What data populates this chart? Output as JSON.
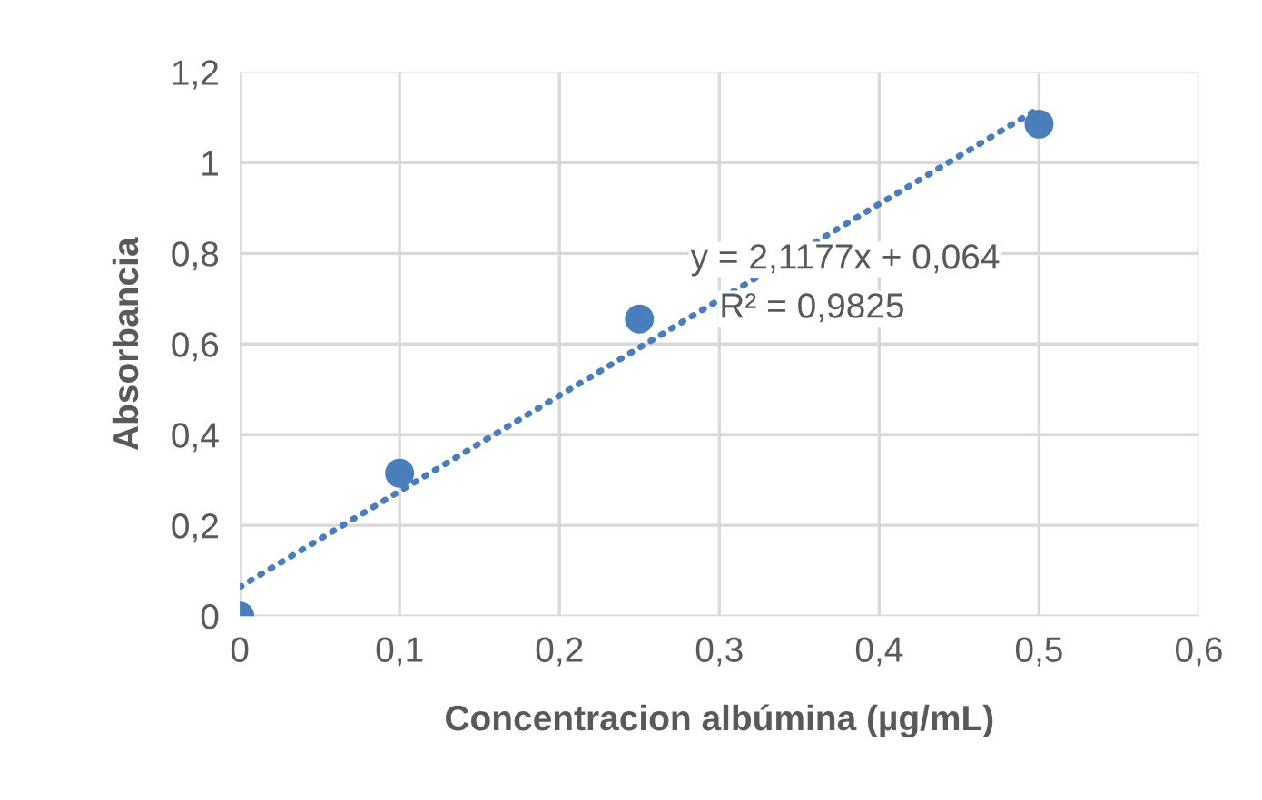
{
  "chart_data": {
    "type": "scatter",
    "xlabel": "Concentracion albúmina (µg/mL)",
    "ylabel": "Absorbancia",
    "series": [
      {
        "color": "#4a7ebb",
        "x": [
          0,
          0.1,
          0.25,
          0.5
        ],
        "values": [
          0,
          0.315,
          0.655,
          1.085
        ],
        "marker": "circle"
      },
      {
        "type": "line",
        "color": "#4a7ebb",
        "x": [
          0,
          0.5
        ],
        "values": [
          0.064,
          1.12
        ],
        "line_style": "dotted",
        "marker": "none"
      }
    ],
    "annotations": [
      "y = 2,1177x + 0,064",
      "R² = 0,9825"
    ],
    "xlim": [
      0,
      0.6
    ],
    "ylim": [
      0,
      1.2
    ],
    "xticks": [
      0,
      {
        "value": 0.1,
        "label": "0,1"
      },
      {
        "value": 0.2,
        "label": "0,2"
      },
      {
        "value": 0.3,
        "label": "0,3"
      },
      {
        "value": 0.4,
        "label": "0,4"
      },
      {
        "value": 0.5,
        "label": "0,5"
      },
      {
        "value": 0.6,
        "label": "0,6"
      }
    ],
    "yticks": [
      0,
      {
        "value": 0.2,
        "label": "0,2"
      },
      {
        "value": 0.4,
        "label": "0,4"
      },
      {
        "value": 0.6,
        "label": "0,6"
      },
      {
        "value": 0.8,
        "label": "0,8"
      },
      1,
      {
        "value": 1.2,
        "label": "1,2"
      }
    ],
    "grid": true,
    "legend": false
  }
}
